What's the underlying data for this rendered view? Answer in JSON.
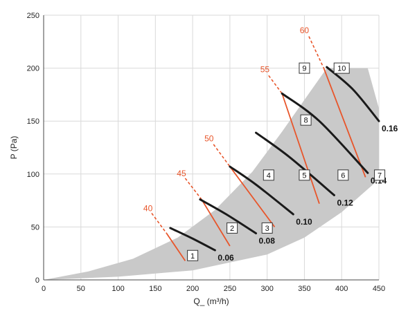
{
  "chart_data": {
    "type": "line",
    "title": "",
    "xlabel": "Q_ (m³/h)",
    "ylabel": "P (Pa)",
    "xlim": [
      0,
      450
    ],
    "ylim": [
      0,
      250
    ],
    "xticks": [
      0,
      50,
      100,
      150,
      200,
      250,
      300,
      350,
      400,
      450
    ],
    "yticks": [
      0,
      50,
      100,
      150,
      200,
      250
    ],
    "grid": true,
    "operating_region": {
      "upper_boundary": [
        [
          0,
          0
        ],
        [
          60,
          8
        ],
        [
          120,
          20
        ],
        [
          180,
          40
        ],
        [
          230,
          66
        ],
        [
          280,
          102
        ],
        [
          320,
          140
        ],
        [
          350,
          170
        ],
        [
          380,
          200
        ],
        [
          435,
          200
        ],
        [
          450,
          162
        ]
      ],
      "lower_boundary": [
        [
          0,
          0
        ],
        [
          100,
          3
        ],
        [
          200,
          9
        ],
        [
          300,
          24
        ],
        [
          350,
          40
        ],
        [
          400,
          64
        ],
        [
          450,
          95
        ]
      ]
    },
    "system_curves": [
      {
        "name": "0.06",
        "points": [
          [
            170,
            49
          ],
          [
            200,
            39
          ],
          [
            230,
            28
          ]
        ]
      },
      {
        "name": "0.08",
        "points": [
          [
            210,
            76
          ],
          [
            245,
            62
          ],
          [
            285,
            44
          ]
        ]
      },
      {
        "name": "0.10",
        "points": [
          [
            250,
            107
          ],
          [
            285,
            90
          ],
          [
            335,
            62
          ]
        ]
      },
      {
        "name": "0.12",
        "points": [
          [
            285,
            139
          ],
          [
            330,
            116
          ],
          [
            390,
            80
          ]
        ]
      },
      {
        "name": "0.14",
        "points": [
          [
            320,
            176
          ],
          [
            370,
            150
          ],
          [
            435,
            101
          ]
        ]
      },
      {
        "name": "0.16",
        "points": [
          [
            380,
            201
          ],
          [
            415,
            180
          ],
          [
            450,
            150
          ]
        ]
      }
    ],
    "iso_lines": [
      {
        "name": "40",
        "points": [
          [
            165,
            44
          ],
          [
            190,
            18
          ]
        ],
        "dash": [
          [
            145,
            63
          ],
          [
            165,
            44
          ]
        ],
        "label_at": [
          140,
          65
        ]
      },
      {
        "name": "45",
        "points": [
          [
            212,
            76
          ],
          [
            250,
            32
          ]
        ],
        "dash": [
          [
            190,
            96
          ],
          [
            212,
            76
          ]
        ],
        "label_at": [
          185,
          98
        ]
      },
      {
        "name": "50",
        "points": [
          [
            250,
            107
          ],
          [
            310,
            50
          ]
        ],
        "dash": [
          [
            228,
            128
          ],
          [
            250,
            107
          ]
        ],
        "label_at": [
          222,
          131
        ]
      },
      {
        "name": "55",
        "points": [
          [
            320,
            176
          ],
          [
            370,
            72
          ]
        ],
        "dash": [
          [
            302,
            193
          ],
          [
            320,
            176
          ]
        ],
        "label_at": [
          297,
          196
        ]
      },
      {
        "name": "60",
        "points": [
          [
            376,
            200
          ],
          [
            432,
            97
          ]
        ],
        "dash": [
          [
            356,
            230
          ],
          [
            376,
            200
          ]
        ],
        "label_at": [
          350,
          233
        ]
      }
    ],
    "markers": [
      {
        "name": "1",
        "at": [
          200,
          23
        ]
      },
      {
        "name": "2",
        "at": [
          253,
          49
        ]
      },
      {
        "name": "3",
        "at": [
          300,
          49
        ]
      },
      {
        "name": "4",
        "at": [
          302,
          99
        ]
      },
      {
        "name": "5",
        "at": [
          350,
          99
        ]
      },
      {
        "name": "6",
        "at": [
          402,
          99
        ]
      },
      {
        "name": "7",
        "at": [
          451,
          99
        ]
      },
      {
        "name": "8",
        "at": [
          352,
          151
        ]
      },
      {
        "name": "9",
        "at": [
          350,
          200
        ]
      },
      {
        "name": "10",
        "at": [
          400,
          200
        ]
      }
    ]
  }
}
